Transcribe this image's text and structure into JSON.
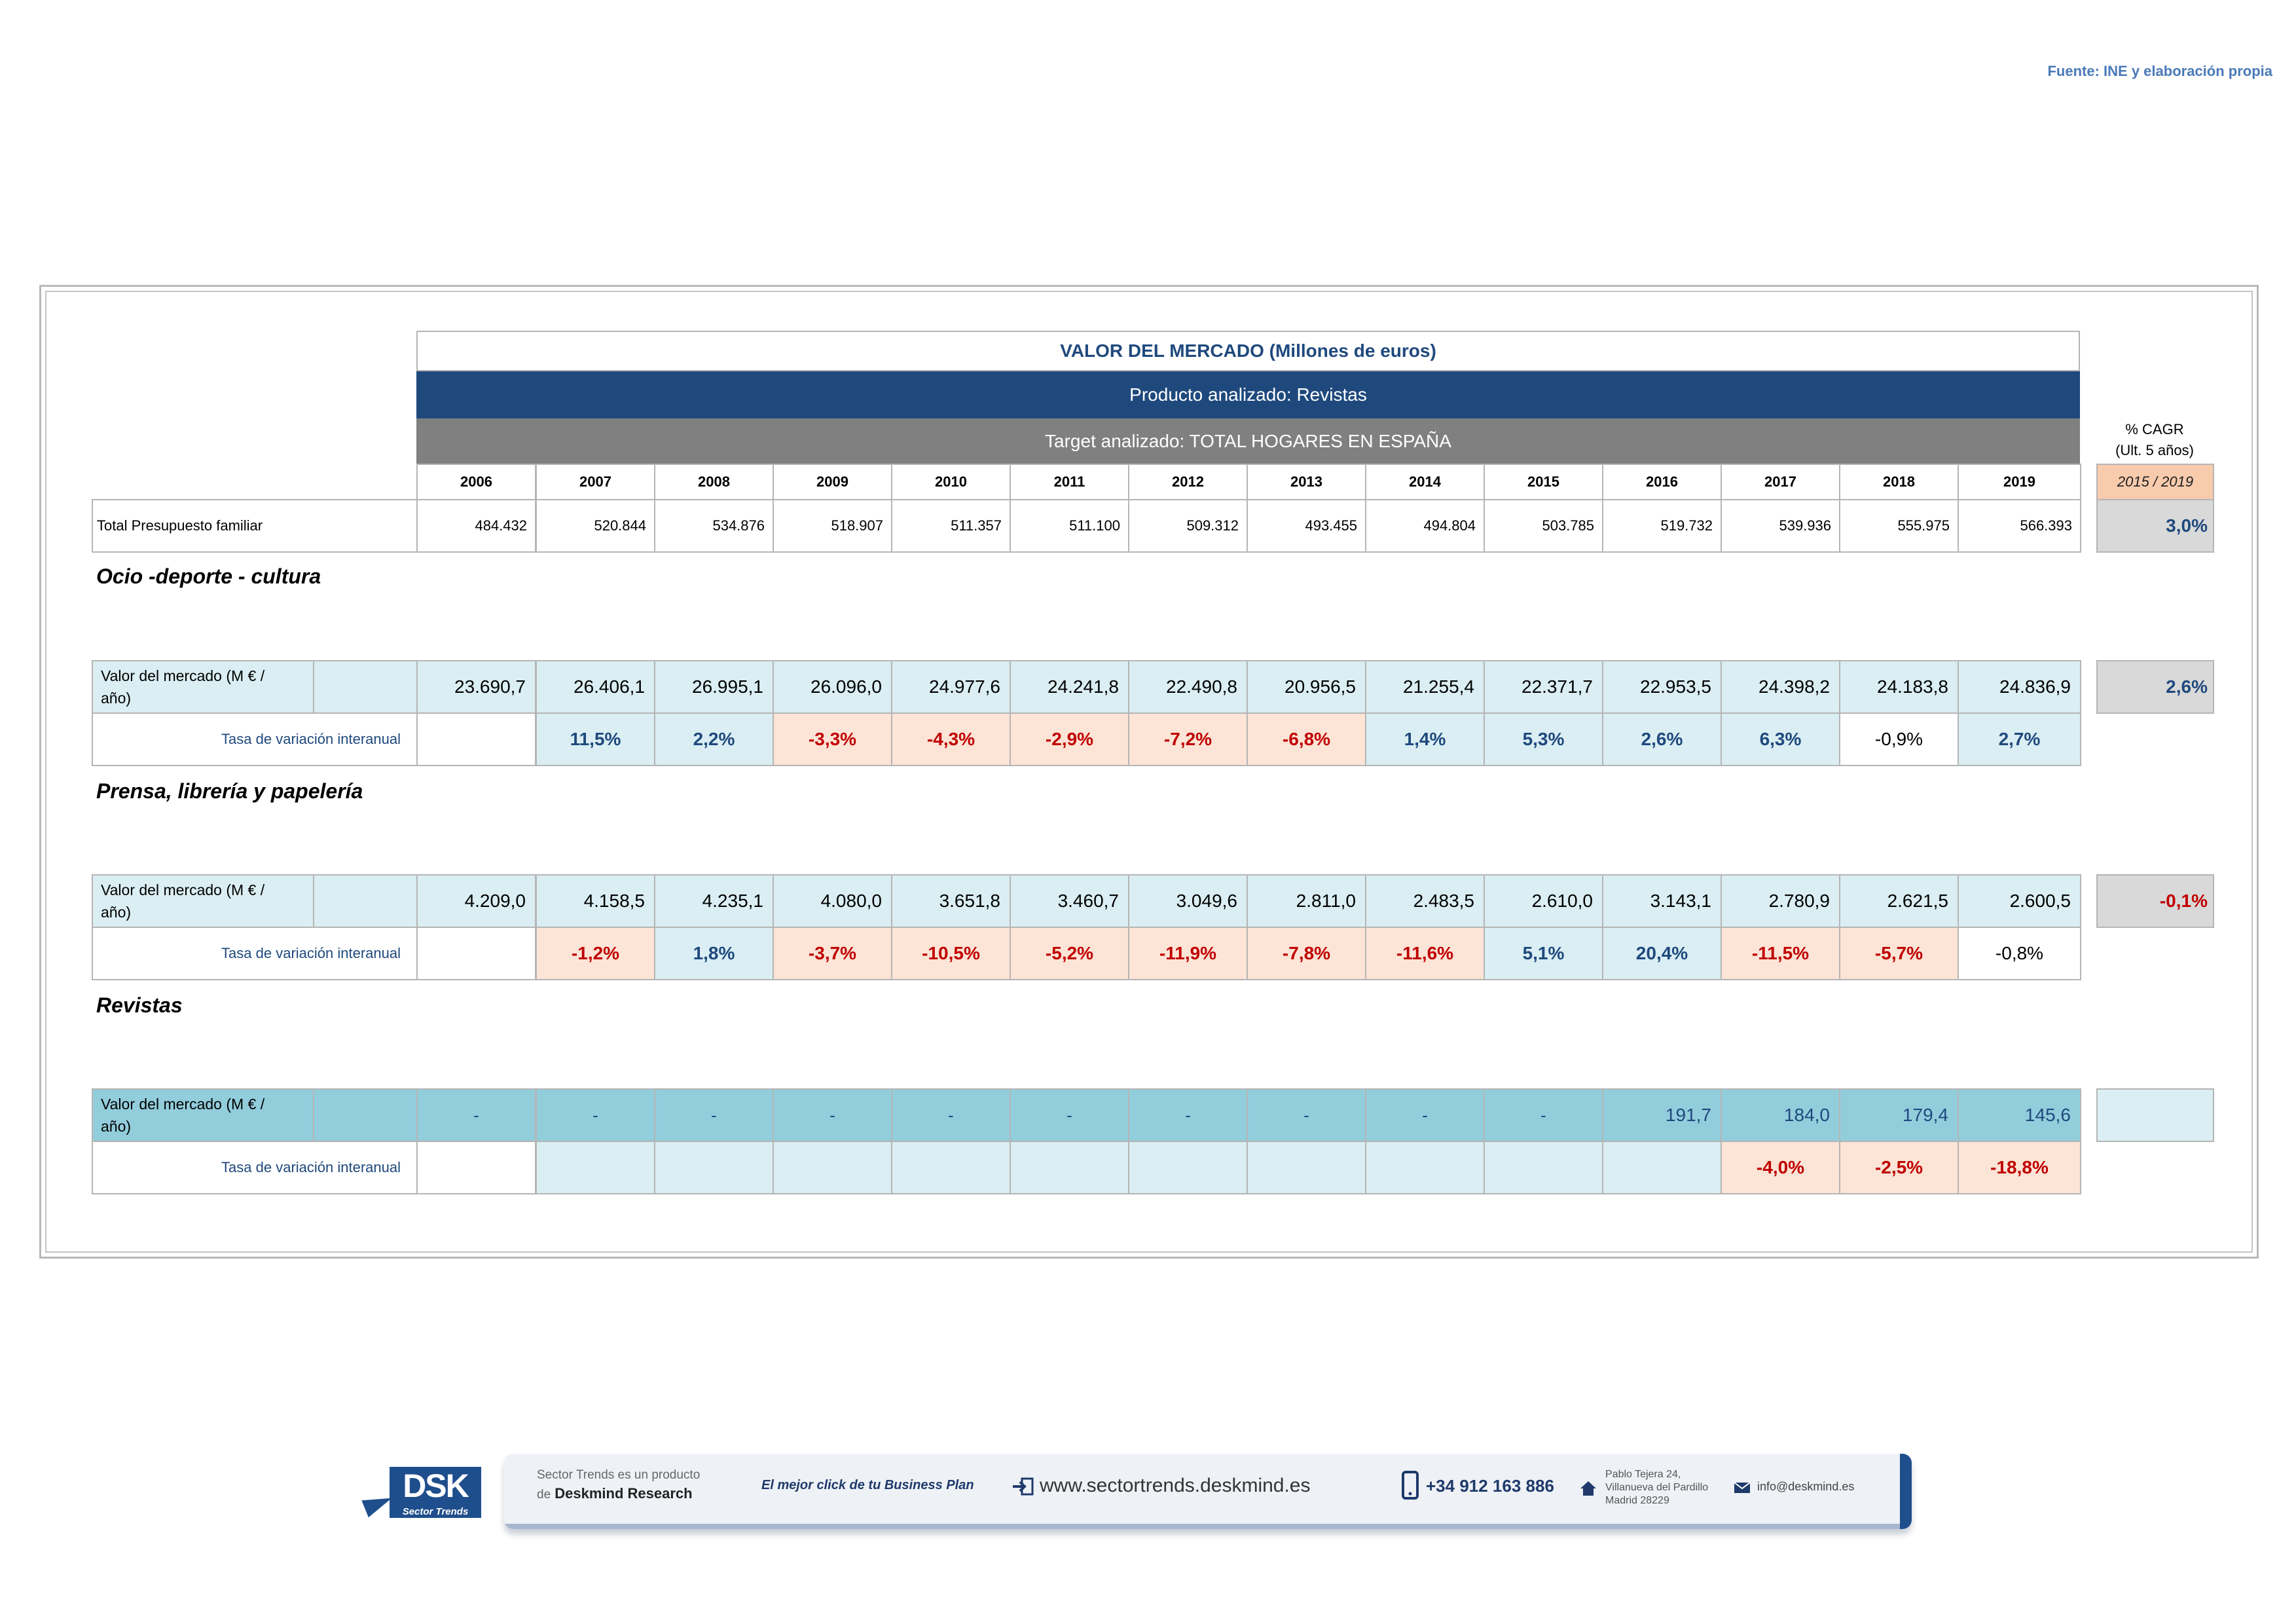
{
  "source": "Fuente: INE y elaboración propia",
  "header": {
    "title": "VALOR DEL MERCADO (Millones de euros)",
    "product": "Producto analizado: Revistas",
    "target": "Target analizado: TOTAL HOGARES EN ESPAÑA",
    "cagr_label_1": "% CAGR",
    "cagr_label_2": "(Ult. 5 años)",
    "cagr_period": "2015 / 2019"
  },
  "years": [
    "2006",
    "2007",
    "2008",
    "2009",
    "2010",
    "2011",
    "2012",
    "2013",
    "2014",
    "2015",
    "2016",
    "2017",
    "2018",
    "2019"
  ],
  "total": {
    "label": "Total Presupuesto familiar",
    "values": [
      "484.432",
      "520.844",
      "534.876",
      "518.907",
      "511.357",
      "511.100",
      "509.312",
      "493.455",
      "494.804",
      "503.785",
      "519.732",
      "539.936",
      "555.975",
      "566.393"
    ],
    "cagr": "3,0%"
  },
  "sections": [
    {
      "title": "Ocio -deporte - cultura",
      "value_label_1": "Valor del mercado (M € /",
      "value_label_2": "año)",
      "values": [
        "23.690,7",
        "26.406,1",
        "26.995,1",
        "26.096,0",
        "24.977,6",
        "24.241,8",
        "22.490,8",
        "20.956,5",
        "21.255,4",
        "22.371,7",
        "22.953,5",
        "24.398,2",
        "24.183,8",
        "24.836,9"
      ],
      "cagr": "2,6%",
      "rate_label": "Tasa de variación interanual",
      "rates": [
        "",
        "11,5%",
        "2,2%",
        "-3,3%",
        "-4,3%",
        "-2,9%",
        "-7,2%",
        "-6,8%",
        "1,4%",
        "5,3%",
        "2,6%",
        "6,3%",
        "-0,9%",
        "2,7%"
      ]
    },
    {
      "title": "Prensa, librería y papelería",
      "value_label_1": "Valor del mercado (M € /",
      "value_label_2": "año)",
      "values": [
        "4.209,0",
        "4.158,5",
        "4.235,1",
        "4.080,0",
        "3.651,8",
        "3.460,7",
        "3.049,6",
        "2.811,0",
        "2.483,5",
        "2.610,0",
        "3.143,1",
        "2.780,9",
        "2.621,5",
        "2.600,5"
      ],
      "cagr": "-0,1%",
      "rate_label": "Tasa de variación interanual",
      "rates": [
        "",
        "-1,2%",
        "1,8%",
        "-3,7%",
        "-10,5%",
        "-5,2%",
        "-11,9%",
        "-7,8%",
        "-11,6%",
        "5,1%",
        "20,4%",
        "-11,5%",
        "-5,7%",
        "-0,8%"
      ]
    },
    {
      "title": "Revistas",
      "value_label_1": "Valor del mercado (M € /",
      "value_label_2": "año)",
      "values": [
        "-",
        "-",
        "-",
        "-",
        "-",
        "-",
        "-",
        "-",
        "-",
        "-",
        "191,7",
        "184,0",
        "179,4",
        "145,6"
      ],
      "cagr": "",
      "rate_label": "Tasa de variación interanual",
      "rates": [
        "",
        "",
        "",
        "",
        "",
        "",
        "",
        "",
        "",
        "",
        "",
        "-4,0%",
        "-2,5%",
        "-18,8%"
      ]
    }
  ],
  "footer": {
    "logo": "DSK",
    "logo_sub": "Sector Trends",
    "product_line_1": "Sector Trends es un producto",
    "product_line_2_prefix": "de",
    "product_line_2_brand": "Deskmind Research",
    "slogan": "El mejor click de tu Business Plan",
    "website": "www.sectortrends.deskmind.es",
    "phone": "+34 912 163 886",
    "address_1": "Pablo Tejera 24,",
    "address_2": "Villanueva del Pardillo",
    "address_3": "Madrid 28229",
    "email": "info@deskmind.es"
  },
  "colors": {
    "navy": "#1f497d",
    "grey_header": "#808080",
    "light_blue": "#daeef3",
    "mid_blue": "#92cddc",
    "pink": "#fce4d6",
    "negative": "#c00000",
    "positive": "#1f497d"
  }
}
